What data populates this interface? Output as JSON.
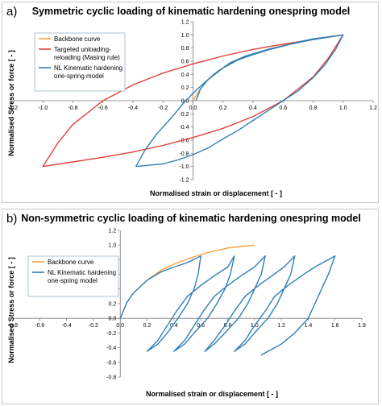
{
  "panels": [
    {
      "label": "a)",
      "title": "Symmetric cyclic loading of kinematic hardening onespring model",
      "xlabel": "Normalised strain or displacement [   -  ]",
      "ylabel": "Normalised Stress or force [   -  ]",
      "legend": [
        {
          "lines": [
            "Backbone curve"
          ],
          "color": "#f7a13d"
        },
        {
          "lines": [
            "Targeted unloading-",
            "reloading (Masing rule)"
          ],
          "color": "#e0413c"
        },
        {
          "lines": [
            "NL Kinematic hardening",
            "one-spring model"
          ],
          "color": "#2f7fb8"
        }
      ]
    },
    {
      "label": "b)",
      "title": "Non-symmetric cyclic loading of kinematic hardening onespring model",
      "xlabel": "Normalised strain or displacement [   -  ]",
      "ylabel": "Normalised Stress or force [   -  ]",
      "legend": [
        {
          "lines": [
            "Backbone curve"
          ],
          "color": "#f7a13d"
        },
        {
          "lines": [
            "NL Kinematic hardening",
            "one-spring model"
          ],
          "color": "#2f7fb8"
        }
      ]
    }
  ],
  "chart_data": [
    {
      "type": "line",
      "title": "Symmetric cyclic loading of kinematic hardening onespring model",
      "xlabel": "Normalised strain or displacement [   -  ]",
      "ylabel": "Normalised Stress or force [   -  ]",
      "xlim": [
        -1.2,
        1.2
      ],
      "ylim": [
        -1.2,
        1.2
      ],
      "xticks": [
        "-1.2",
        "-1.0",
        "-0.8",
        "-0.6",
        "-0.4",
        "-0.2",
        "0.0",
        "0.2",
        "0.4",
        "0.6",
        "0.8",
        "1.0",
        "1.2"
      ],
      "yticks": [
        "-1.2",
        "-1.0",
        "-0.8",
        "-0.6",
        "-0.4",
        "-0.2",
        "0.0",
        "0.2",
        "0.4",
        "0.6",
        "0.8",
        "1.0",
        "1.2"
      ],
      "legend_position": "top-left",
      "series": [
        {
          "name": "Backbone curve",
          "color": "#f7a13d",
          "points": [
            [
              0,
              0
            ],
            [
              0.05,
              0.18
            ],
            [
              0.1,
              0.32
            ],
            [
              0.2,
              0.5
            ],
            [
              0.3,
              0.62
            ],
            [
              0.4,
              0.71
            ],
            [
              0.5,
              0.78
            ],
            [
              0.6,
              0.84
            ],
            [
              0.7,
              0.89
            ],
            [
              0.8,
              0.93
            ],
            [
              0.9,
              0.97
            ],
            [
              1.0,
              1.0
            ]
          ]
        },
        {
          "name": "Targeted unloading-reloading (Masing rule)",
          "color": "#e0413c",
          "points": [
            [
              1.0,
              1.0
            ],
            [
              0.9,
              0.64
            ],
            [
              0.8,
              0.36
            ],
            [
              0.6,
              0.0
            ],
            [
              0.4,
              -0.24
            ],
            [
              0.2,
              -0.42
            ],
            [
              0.0,
              -0.56
            ],
            [
              -0.2,
              -0.68
            ],
            [
              -0.4,
              -0.78
            ],
            [
              -0.6,
              -0.86
            ],
            [
              -0.8,
              -0.93
            ],
            [
              -1.0,
              -1.0
            ],
            [
              -0.9,
              -0.64
            ],
            [
              -0.8,
              -0.36
            ],
            [
              -0.6,
              0.0
            ],
            [
              -0.4,
              0.24
            ],
            [
              -0.2,
              0.42
            ],
            [
              0.0,
              0.56
            ],
            [
              0.2,
              0.68
            ],
            [
              0.4,
              0.78
            ],
            [
              0.6,
              0.86
            ],
            [
              0.8,
              0.93
            ],
            [
              1.0,
              1.0
            ]
          ]
        },
        {
          "name": "NL Kinematic hardening one-spring model",
          "color": "#2f7fb8",
          "points": [
            [
              0.02,
              0.0
            ],
            [
              0.05,
              0.18
            ],
            [
              0.1,
              0.32
            ],
            [
              0.2,
              0.5
            ],
            [
              0.3,
              0.62
            ],
            [
              0.4,
              0.7
            ],
            [
              0.5,
              0.77
            ],
            [
              0.6,
              0.83
            ],
            [
              0.7,
              0.89
            ],
            [
              0.8,
              0.94
            ],
            [
              0.9,
              0.97
            ],
            [
              1.0,
              1.0
            ],
            [
              0.95,
              0.78
            ],
            [
              0.88,
              0.55
            ],
            [
              0.8,
              0.35
            ],
            [
              0.7,
              0.15
            ],
            [
              0.6,
              0.0
            ],
            [
              0.5,
              -0.15
            ],
            [
              0.4,
              -0.3
            ],
            [
              0.3,
              -0.45
            ],
            [
              0.2,
              -0.58
            ],
            [
              0.1,
              -0.72
            ],
            [
              0.0,
              -0.82
            ],
            [
              -0.1,
              -0.9
            ],
            [
              -0.2,
              -0.96
            ],
            [
              -0.38,
              -1.0
            ],
            [
              -0.32,
              -0.75
            ],
            [
              -0.24,
              -0.5
            ],
            [
              -0.14,
              -0.25
            ],
            [
              -0.05,
              0.0
            ],
            [
              0.05,
              0.22
            ],
            [
              0.15,
              0.42
            ],
            [
              0.25,
              0.58
            ],
            [
              0.35,
              0.68
            ],
            [
              0.5,
              0.78
            ],
            [
              0.65,
              0.86
            ],
            [
              0.8,
              0.93
            ],
            [
              1.0,
              1.0
            ]
          ]
        }
      ]
    },
    {
      "type": "line",
      "title": "Non-symmetric cyclic loading of kinematic hardening onespring model",
      "xlabel": "Normalised strain or displacement [   -  ]",
      "ylabel": "Normalised Stress or force [   -  ]",
      "xlim": [
        -0.8,
        1.8
      ],
      "ylim": [
        -0.8,
        1.2
      ],
      "xticks": [
        "-0.8",
        "-0.6",
        "-0.4",
        "-0.2",
        "0.0",
        "0.2",
        "0.4",
        "0.6",
        "0.8",
        "1.0",
        "1.2",
        "1.4",
        "1.6",
        "1.8"
      ],
      "yticks": [
        "-0.8",
        "-0.6",
        "-0.4",
        "-0.2",
        "0.0",
        "0.2",
        "0.4",
        "0.6",
        "0.8",
        "1.0",
        "1.2"
      ],
      "legend_position": "top-left",
      "series": [
        {
          "name": "Backbone curve",
          "color": "#f7a13d",
          "points": [
            [
              0,
              0
            ],
            [
              0.05,
              0.22
            ],
            [
              0.1,
              0.35
            ],
            [
              0.2,
              0.52
            ],
            [
              0.3,
              0.65
            ],
            [
              0.4,
              0.74
            ],
            [
              0.5,
              0.81
            ],
            [
              0.6,
              0.87
            ],
            [
              0.7,
              0.92
            ],
            [
              0.8,
              0.96
            ],
            [
              0.9,
              0.98
            ],
            [
              1.0,
              1.0
            ]
          ]
        },
        {
          "name": "NL Kinematic hardening one-spring model",
          "color": "#2f7fb8",
          "points": [
            [
              0,
              0
            ],
            [
              0.05,
              0.22
            ],
            [
              0.1,
              0.35
            ],
            [
              0.2,
              0.52
            ],
            [
              0.3,
              0.63
            ],
            [
              0.4,
              0.7
            ],
            [
              0.5,
              0.76
            ],
            [
              0.6,
              0.85
            ],
            [
              0.58,
              0.6
            ],
            [
              0.55,
              0.4
            ],
            [
              0.5,
              0.2
            ],
            [
              0.43,
              0.0
            ],
            [
              0.35,
              -0.2
            ],
            [
              0.28,
              -0.35
            ],
            [
              0.2,
              -0.45
            ],
            [
              0.28,
              -0.3
            ],
            [
              0.35,
              -0.1
            ],
            [
              0.42,
              0.1
            ],
            [
              0.5,
              0.3
            ],
            [
              0.6,
              0.45
            ],
            [
              0.7,
              0.58
            ],
            [
              0.8,
              0.7
            ],
            [
              0.85,
              0.85
            ],
            [
              0.82,
              0.6
            ],
            [
              0.78,
              0.4
            ],
            [
              0.72,
              0.2
            ],
            [
              0.65,
              0.0
            ],
            [
              0.55,
              -0.2
            ],
            [
              0.48,
              -0.35
            ],
            [
              0.4,
              -0.45
            ],
            [
              0.48,
              -0.3
            ],
            [
              0.55,
              -0.1
            ],
            [
              0.62,
              0.1
            ],
            [
              0.7,
              0.3
            ],
            [
              0.8,
              0.45
            ],
            [
              0.9,
              0.58
            ],
            [
              1.0,
              0.7
            ],
            [
              1.08,
              0.85
            ],
            [
              1.05,
              0.6
            ],
            [
              1.0,
              0.4
            ],
            [
              0.95,
              0.2
            ],
            [
              0.88,
              0.0
            ],
            [
              0.78,
              -0.2
            ],
            [
              0.7,
              -0.35
            ],
            [
              0.63,
              -0.45
            ],
            [
              0.7,
              -0.3
            ],
            [
              0.78,
              -0.1
            ],
            [
              0.85,
              0.1
            ],
            [
              0.93,
              0.3
            ],
            [
              1.03,
              0.45
            ],
            [
              1.13,
              0.58
            ],
            [
              1.22,
              0.7
            ],
            [
              1.3,
              0.85
            ],
            [
              1.27,
              0.6
            ],
            [
              1.22,
              0.4
            ],
            [
              1.17,
              0.2
            ],
            [
              1.1,
              0.0
            ],
            [
              1.0,
              -0.2
            ],
            [
              0.93,
              -0.35
            ],
            [
              0.85,
              -0.45
            ],
            [
              0.93,
              -0.3
            ],
            [
              1.0,
              -0.1
            ],
            [
              1.08,
              0.1
            ],
            [
              1.15,
              0.3
            ],
            [
              1.25,
              0.45
            ],
            [
              1.35,
              0.58
            ],
            [
              1.45,
              0.7
            ],
            [
              1.6,
              0.85
            ],
            [
              1.55,
              0.6
            ],
            [
              1.5,
              0.4
            ],
            [
              1.45,
              0.2
            ],
            [
              1.4,
              0.0
            ],
            [
              1.3,
              -0.2
            ],
            [
              1.2,
              -0.35
            ],
            [
              1.05,
              -0.5
            ]
          ]
        }
      ]
    }
  ]
}
